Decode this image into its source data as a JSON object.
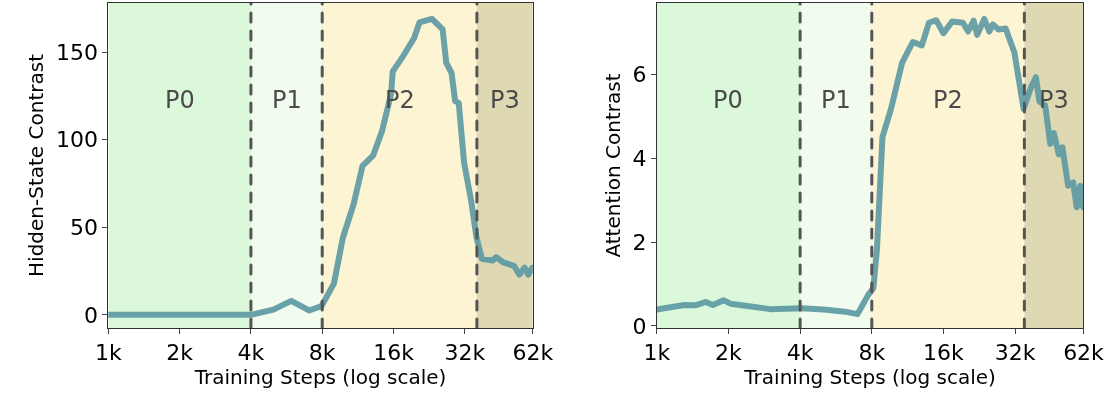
{
  "chart_data": [
    {
      "type": "line",
      "xlabel": "Training Steps (log scale)",
      "ylabel": "Hidden-State Contrast",
      "log": "x",
      "grid": true,
      "xlim": [
        1000,
        62000
      ],
      "ylim": [
        -7.5,
        178
      ],
      "xticks": [
        {
          "value": 1000,
          "label": "1k"
        },
        {
          "value": 2000,
          "label": "2k"
        },
        {
          "value": 4000,
          "label": "4k"
        },
        {
          "value": 8000,
          "label": "8k"
        },
        {
          "value": 16000,
          "label": "16k"
        },
        {
          "value": 32000,
          "label": "32k"
        },
        {
          "value": 62000,
          "label": "62k"
        }
      ],
      "yticks": [
        0,
        50,
        100,
        150
      ],
      "x": [
        1000,
        4000,
        4975,
        5920,
        7040,
        7950,
        8970,
        9780,
        10850,
        11840,
        13130,
        14320,
        15620,
        15890,
        17630,
        19560,
        20600,
        23260,
        25800,
        26710,
        28150,
        29140,
        30170,
        31780,
        34060,
        35870,
        37790,
        41930,
        43410,
        46520,
        51620,
        54370,
        57270,
        59300,
        61800
      ],
      "series": [
        {
          "color": "#5b98a2",
          "values": [
            0,
            0,
            3,
            8,
            2.5,
            5,
            18,
            44,
            63,
            85,
            91,
            105,
            126,
            139,
            148,
            158,
            167,
            169,
            163,
            144,
            138,
            122,
            121,
            87,
            65,
            44,
            32,
            31,
            33,
            30,
            28,
            23,
            27,
            23,
            27
          ]
        }
      ],
      "ref_lines": [
        {
          "axis": "x",
          "value": 4000,
          "color": "#555555",
          "line_style": "dashed"
        },
        {
          "axis": "x",
          "value": 8000,
          "color": "#555555",
          "line_style": "dashed"
        },
        {
          "axis": "x",
          "value": 36000,
          "color": "#555555",
          "line_style": "dashed"
        }
      ],
      "bands": [
        {
          "axis": "x",
          "from": 1000,
          "to": 4000,
          "label": "P0",
          "color": "#dbf9da"
        },
        {
          "axis": "x",
          "from": 4000,
          "to": 8000,
          "label": "P1",
          "color": "#f1fcee"
        },
        {
          "axis": "x",
          "from": 8000,
          "to": 36000,
          "label": "P2",
          "color": "#fdf4d4"
        },
        {
          "axis": "x",
          "from": 36000,
          "to": 62000,
          "label": "P3",
          "color": "#ded9b2"
        }
      ]
    },
    {
      "type": "line",
      "xlabel": "Training Steps (log scale)",
      "ylabel": "Attention Contrast",
      "log": "x",
      "grid": true,
      "xlim": [
        1000,
        62000
      ],
      "ylim": [
        -0.05,
        7.7
      ],
      "xticks": [
        {
          "value": 1000,
          "label": "1k"
        },
        {
          "value": 2000,
          "label": "2k"
        },
        {
          "value": 4000,
          "label": "4k"
        },
        {
          "value": 8000,
          "label": "8k"
        },
        {
          "value": 16000,
          "label": "16k"
        },
        {
          "value": 32000,
          "label": "32k"
        },
        {
          "value": 62000,
          "label": "62k"
        }
      ],
      "yticks": [
        0,
        2,
        4,
        6
      ],
      "x": [
        1000,
        1305,
        1450,
        1605,
        1720,
        1910,
        2040,
        2990,
        4080,
        5020,
        6180,
        6970,
        7730,
        8120,
        8410,
        8870,
        9660,
        10720,
        11900,
        12980,
        13910,
        14920,
        16000,
        17410,
        19310,
        20320,
        21420,
        22170,
        23750,
        24950,
        25830,
        27260,
        29200,
        31780,
        34730,
        37260,
        39120,
        40500,
        42800,
        44940,
        46520,
        48840,
        50560,
        53440,
        56100,
        58080,
        60130,
        61800
      ],
      "series": [
        {
          "color": "#5b98a2",
          "values": [
            0.39,
            0.5,
            0.49,
            0.57,
            0.5,
            0.61,
            0.53,
            0.4,
            0.42,
            0.39,
            0.34,
            0.28,
            0.74,
            0.9,
            1.83,
            4.5,
            5.2,
            6.27,
            6.77,
            6.69,
            7.23,
            7.29,
            6.98,
            7.26,
            7.23,
            7.02,
            7.28,
            6.94,
            7.32,
            7.02,
            7.19,
            7.07,
            7.09,
            6.52,
            5.18,
            5.68,
            5.93,
            5.35,
            5.26,
            4.34,
            4.6,
            4.09,
            4.26,
            3.34,
            3.42,
            2.83,
            3.34,
            2.83
          ]
        }
      ],
      "ref_lines": [
        {
          "axis": "x",
          "value": 4000,
          "color": "#555555",
          "line_style": "dashed"
        },
        {
          "axis": "x",
          "value": 8000,
          "color": "#555555",
          "line_style": "dashed"
        },
        {
          "axis": "x",
          "value": 35000,
          "color": "#555555",
          "line_style": "dashed"
        }
      ],
      "bands": [
        {
          "axis": "x",
          "from": 1000,
          "to": 4000,
          "label": "P0",
          "color": "#dbf9da"
        },
        {
          "axis": "x",
          "from": 4000,
          "to": 8000,
          "label": "P1",
          "color": "#f1fcee"
        },
        {
          "axis": "x",
          "from": 8000,
          "to": 35000,
          "label": "P2",
          "color": "#fdf4d4"
        },
        {
          "axis": "x",
          "from": 35000,
          "to": 62000,
          "label": "P3",
          "color": "#ded9b2"
        }
      ]
    }
  ]
}
